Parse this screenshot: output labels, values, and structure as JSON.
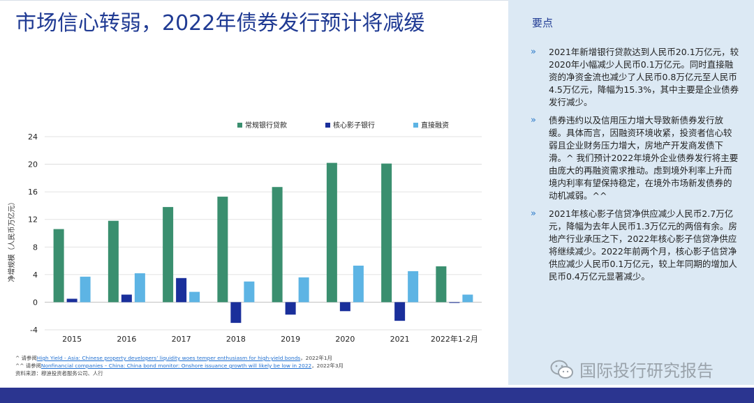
{
  "title": "市场信心转弱，2022年债券发行预计将减缓",
  "side": {
    "heading": "要点",
    "bullet_symbol": "»",
    "points": [
      "2021年新增银行贷款达到人民币20.1万亿元，较2020年小幅减少人民币0.1万亿元。同时直接融资的净资金流也减少了人民币0.8万亿元至人民币4.5万亿元，降幅为15.3%，其中主要是企业债券发行减少。",
      "债券违约以及信用压力增大导致新债券发行放缓。具体而言，因融资环境收紧，投资者信心较弱且企业财务压力增大，房地产开发商发债下滑。^ 我们预计2022年境外企业债券发行将主要由庞大的再融资需求推动。虑到境外利率上升而境内利率有望保持稳定，在境外市场新发债券的动机减弱。^^",
      "2021年核心影子信贷净供应减少人民币2.7万亿元，降幅为去年人民币1.3万亿元的两倍有余。房地产行业承压之下，2022年核心影子信贷净供应将继续减少。2022年前两个月，核心影子信贷净供应减少人民币0.1万亿元，较上年同期的增加人民币0.4万亿元显著减少。"
    ]
  },
  "chart_data": {
    "type": "bar",
    "ylabel": "净增规模（人民币万亿元）",
    "ylim": [
      -4,
      24
    ],
    "yticks": [
      "-4",
      "0",
      "4",
      "8",
      "12",
      "16",
      "20",
      "24"
    ],
    "categories": [
      "2015",
      "2016",
      "2017",
      "2018",
      "2019",
      "2020",
      "2021",
      "2022年1-2月"
    ],
    "legend_position": "top",
    "series": [
      {
        "name": "常规银行贷款",
        "color": "#3a8f6f",
        "values": [
          10.6,
          11.8,
          13.8,
          15.3,
          16.7,
          20.2,
          20.1,
          5.2
        ]
      },
      {
        "name": "核心影子银行",
        "color": "#1a2f9b",
        "values": [
          0.5,
          1.1,
          3.5,
          -3.0,
          -1.8,
          -1.3,
          -2.7,
          -0.1
        ]
      },
      {
        "name": "直接融资",
        "color": "#5db4e4",
        "values": [
          3.7,
          4.2,
          1.5,
          3.0,
          3.6,
          5.3,
          4.5,
          1.1
        ]
      }
    ]
  },
  "footnotes": {
    "line1_prefix": "^ 请参阅",
    "line1_link": "High Yield - Asia: Chinese property developers’ liquidity woes temper enthusiasm for high-yield bonds",
    "line1_suffix": "，2022年1月",
    "line2_prefix": "^^ 请参阅",
    "line2_link": "Nonfinancial companies – China: China bond monitor: Onshore issuance growth will likely be low in 2022",
    "line2_suffix": "，2022年3月",
    "line3": "资料来源：穆迪投资者服务公司、人行"
  },
  "watermark": {
    "text": "国际投行研究报告",
    "icon": "wechat-icon"
  }
}
